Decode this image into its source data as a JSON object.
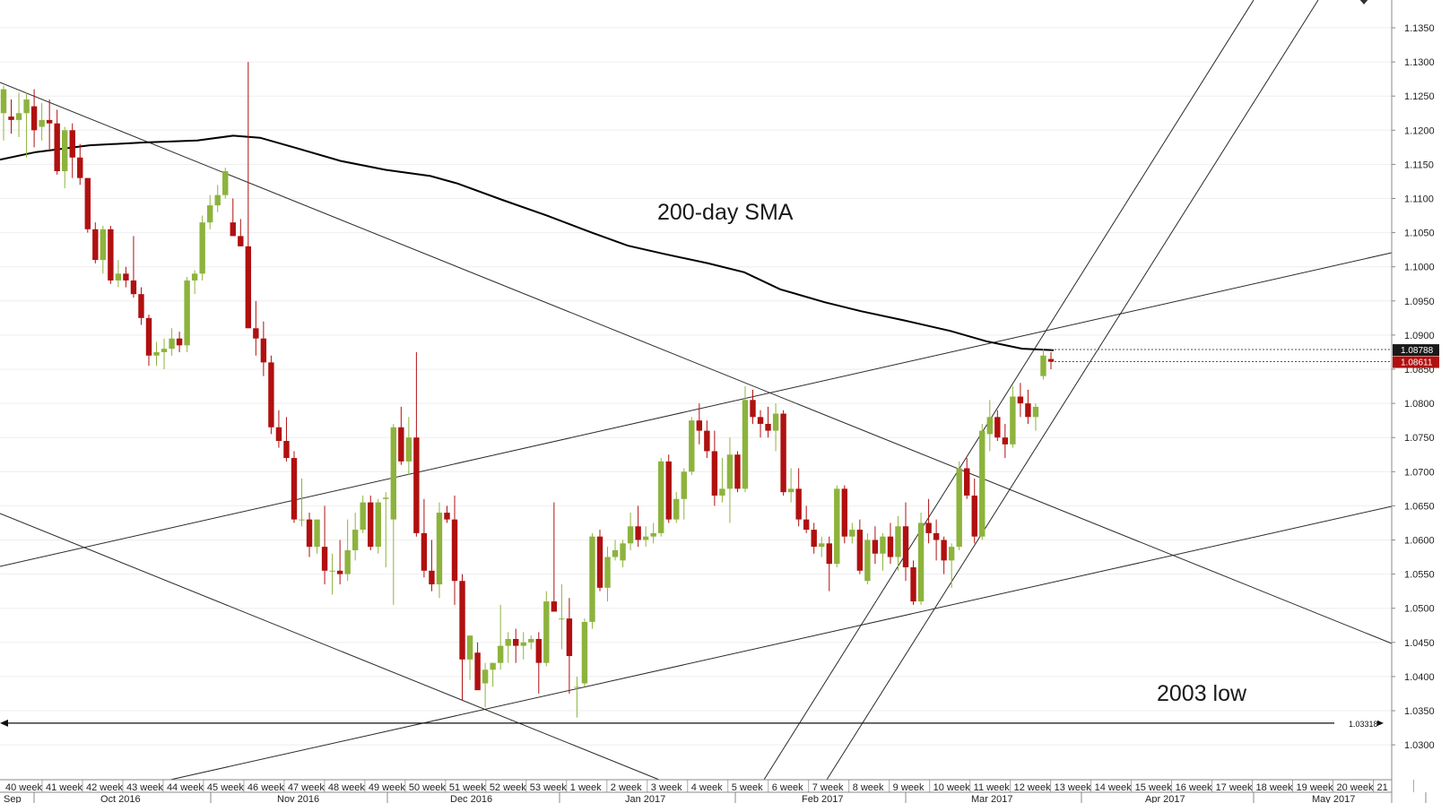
{
  "chart_data": {
    "type": "candlestick",
    "title": "",
    "xlabel": "",
    "ylabel": "",
    "ylim": [
      1.0252,
      1.1402
    ],
    "grid": true,
    "y_ticks": [
      "1.1350",
      "1.1300",
      "1.1250",
      "1.1200",
      "1.1150",
      "1.1100",
      "1.1050",
      "1.1000",
      "1.0950",
      "1.0900",
      "1.0850",
      "1.0800",
      "1.0750",
      "1.0700",
      "1.0650",
      "1.0600",
      "1.0550",
      "1.0500",
      "1.0450",
      "1.0400",
      "1.0350",
      "1.0300"
    ],
    "week_labels": [
      "40 week",
      "41 week",
      "42 week",
      "43 week",
      "44 week",
      "45 week",
      "46 week",
      "47 week",
      "48 week",
      "49 week",
      "50 week",
      "51 week",
      "52 week",
      "53 week",
      "1 week",
      "2 week",
      "3 week",
      "4 week",
      "5 week",
      "6 week",
      "7 week",
      "8 week",
      "9 week",
      "10 week",
      "11 week",
      "12 week",
      "13 week",
      "14 week",
      "15 week",
      "16 week",
      "17 week",
      "18 week",
      "19 week",
      "20 week",
      "21"
    ],
    "month_labels": [
      "Sep",
      "Oct 2016",
      "Nov 2016",
      "Dec 2016",
      "Jan 2017",
      "Feb 2017",
      "Mar 2017",
      "Apr 2017",
      "May 2017"
    ],
    "annotations": [
      "200-day SMA",
      "2003 low"
    ],
    "price_tags": [
      {
        "value": "1.08788",
        "color": "#1a1a1a"
      },
      {
        "value": "1.08611",
        "color": "#b01010"
      },
      {
        "value": "1.03318",
        "color": "#ffffff"
      }
    ],
    "horizontal_line": 1.03318,
    "candles": [
      [
        1.1225,
        1.1265,
        1.1185,
        1.126
      ],
      [
        1.122,
        1.1245,
        1.1195,
        1.1215
      ],
      [
        1.1215,
        1.1255,
        1.119,
        1.1225
      ],
      [
        1.1225,
        1.1255,
        1.116,
        1.1245
      ],
      [
        1.1235,
        1.126,
        1.1175,
        1.12
      ],
      [
        1.1205,
        1.124,
        1.1185,
        1.1215
      ],
      [
        1.1215,
        1.1245,
        1.117,
        1.121
      ],
      [
        1.121,
        1.123,
        1.1135,
        1.114
      ],
      [
        1.114,
        1.1205,
        1.1115,
        1.12
      ],
      [
        1.12,
        1.121,
        1.113,
        1.116
      ],
      [
        1.116,
        1.118,
        1.112,
        1.113
      ],
      [
        1.113,
        1.113,
        1.105,
        1.1055
      ],
      [
        1.1055,
        1.1065,
        1.1005,
        1.101
      ],
      [
        1.101,
        1.106,
        1.099,
        1.1055
      ],
      [
        1.1055,
        1.106,
        1.0975,
        1.098
      ],
      [
        1.098,
        1.101,
        1.097,
        1.099
      ],
      [
        1.099,
        1.1,
        1.097,
        1.098
      ],
      [
        1.098,
        1.1045,
        1.0955,
        1.096
      ],
      [
        1.096,
        1.097,
        1.0915,
        1.0925
      ],
      [
        1.0925,
        1.093,
        1.0855,
        1.087
      ],
      [
        1.087,
        1.089,
        1.0855,
        1.0875
      ],
      [
        1.0875,
        1.0895,
        1.085,
        1.088
      ],
      [
        1.088,
        1.091,
        1.087,
        1.0895
      ],
      [
        1.0895,
        1.0905,
        1.0875,
        1.0885
      ],
      [
        1.0885,
        1.0985,
        1.0875,
        1.098
      ],
      [
        1.098,
        1.0995,
        1.096,
        1.099
      ],
      [
        1.099,
        1.1075,
        1.098,
        1.1065
      ],
      [
        1.1065,
        1.1105,
        1.1055,
        1.109
      ],
      [
        1.109,
        1.112,
        1.108,
        1.1105
      ],
      [
        1.1105,
        1.1145,
        1.11,
        1.114
      ],
      [
        1.1065,
        1.11,
        1.1045,
        1.1045
      ],
      [
        1.1045,
        1.107,
        1.103,
        1.103
      ],
      [
        1.103,
        1.13,
        1.091,
        1.091
      ],
      [
        1.091,
        1.095,
        1.087,
        1.0895
      ],
      [
        1.0895,
        1.092,
        1.084,
        1.086
      ],
      [
        1.086,
        1.087,
        1.0755,
        1.0765
      ],
      [
        1.0765,
        1.079,
        1.0735,
        1.0745
      ],
      [
        1.0745,
        1.078,
        1.0715,
        1.072
      ],
      [
        1.072,
        1.073,
        1.0625,
        1.063
      ],
      [
        1.063,
        1.069,
        1.062,
        1.063
      ],
      [
        1.063,
        1.064,
        1.0575,
        1.059
      ],
      [
        1.059,
        1.063,
        1.058,
        1.063
      ],
      [
        1.059,
        1.065,
        1.0535,
        1.0555
      ],
      [
        1.0555,
        1.058,
        1.052,
        1.0555
      ],
      [
        1.0555,
        1.06,
        1.0535,
        1.055
      ],
      [
        1.055,
        1.063,
        1.054,
        1.0585
      ],
      [
        1.0585,
        1.064,
        1.057,
        1.0615
      ],
      [
        1.0615,
        1.0665,
        1.061,
        1.0655
      ],
      [
        1.0655,
        1.0665,
        1.0585,
        1.059
      ],
      [
        1.059,
        1.066,
        1.058,
        1.0655
      ],
      [
        1.066,
        1.067,
        1.056,
        1.0662
      ],
      [
        1.063,
        1.077,
        1.0505,
        1.0765
      ],
      [
        1.0765,
        1.0795,
        1.071,
        1.0715
      ],
      [
        1.0715,
        1.078,
        1.0695,
        1.075
      ],
      [
        1.075,
        1.0875,
        1.0605,
        1.061
      ],
      [
        1.061,
        1.066,
        1.0545,
        1.0555
      ],
      [
        1.0555,
        1.06,
        1.0525,
        1.0535
      ],
      [
        1.0535,
        1.0655,
        1.0515,
        1.064
      ],
      [
        1.064,
        1.065,
        1.0625,
        1.063
      ],
      [
        1.063,
        1.0665,
        1.0505,
        1.054
      ],
      [
        1.054,
        1.055,
        1.0365,
        1.0425
      ],
      [
        1.0425,
        1.046,
        1.0395,
        1.046
      ],
      [
        1.0435,
        1.045,
        1.0385,
        1.038
      ],
      [
        1.039,
        1.042,
        1.0355,
        1.041
      ],
      [
        1.041,
        1.042,
        1.0385,
        1.042
      ],
      [
        1.042,
        1.0505,
        1.041,
        1.0445
      ],
      [
        1.0445,
        1.0465,
        1.042,
        1.0455
      ],
      [
        1.0455,
        1.047,
        1.042,
        1.0445
      ],
      [
        1.0445,
        1.0465,
        1.0425,
        1.045
      ],
      [
        1.045,
        1.046,
        1.044,
        1.0455
      ],
      [
        1.0455,
        1.0465,
        1.0375,
        1.042
      ],
      [
        1.042,
        1.0525,
        1.0415,
        1.051
      ],
      [
        1.051,
        1.0655,
        1.0495,
        1.0495
      ],
      [
        1.0485,
        1.0535,
        1.044,
        1.0485
      ],
      [
        1.0485,
        1.0515,
        1.0375,
        1.043
      ],
      [
        1.0385,
        1.04,
        1.034,
        1.0385
      ],
      [
        1.039,
        1.0485,
        1.0385,
        1.048
      ],
      [
        1.048,
        1.061,
        1.047,
        1.0605
      ],
      [
        1.0605,
        1.0615,
        1.0525,
        1.053
      ],
      [
        1.053,
        1.059,
        1.051,
        1.0575
      ],
      [
        1.0575,
        1.06,
        1.057,
        1.0585
      ],
      [
        1.057,
        1.06,
        1.056,
        1.0595
      ],
      [
        1.0595,
        1.064,
        1.0585,
        1.062
      ],
      [
        1.062,
        1.065,
        1.059,
        1.06
      ],
      [
        1.06,
        1.062,
        1.059,
        1.0605
      ],
      [
        1.0605,
        1.0625,
        1.0595,
        1.061
      ],
      [
        1.061,
        1.072,
        1.0605,
        1.0715
      ],
      [
        1.0715,
        1.0725,
        1.0625,
        1.063
      ],
      [
        1.063,
        1.067,
        1.0625,
        1.066
      ],
      [
        1.066,
        1.0705,
        1.063,
        1.07
      ],
      [
        1.07,
        1.078,
        1.0695,
        1.0775
      ],
      [
        1.0775,
        1.08,
        1.074,
        1.076
      ],
      [
        1.076,
        1.0775,
        1.072,
        1.073
      ],
      [
        1.073,
        1.076,
        1.065,
        1.0665
      ],
      [
        1.0665,
        1.072,
        1.0655,
        1.0675
      ],
      [
        1.0675,
        1.075,
        1.0625,
        1.0725
      ],
      [
        1.0725,
        1.073,
        1.067,
        1.0675
      ],
      [
        1.0675,
        1.0825,
        1.067,
        1.0805
      ],
      [
        1.0805,
        1.082,
        1.077,
        1.078
      ],
      [
        1.078,
        1.079,
        1.075,
        1.077
      ],
      [
        1.077,
        1.0795,
        1.075,
        1.076
      ],
      [
        1.076,
        1.08,
        1.073,
        1.0785
      ],
      [
        1.0785,
        1.079,
        1.0665,
        1.067
      ],
      [
        1.067,
        1.0705,
        1.0655,
        1.0675
      ],
      [
        1.0675,
        1.0705,
        1.062,
        1.063
      ],
      [
        1.063,
        1.065,
        1.061,
        1.0615
      ],
      [
        1.0615,
        1.0625,
        1.058,
        1.059
      ],
      [
        1.059,
        1.0605,
        1.0575,
        1.0595
      ],
      [
        1.0595,
        1.0605,
        1.0525,
        1.0565
      ],
      [
        1.0565,
        1.068,
        1.056,
        1.0675
      ],
      [
        1.0675,
        1.068,
        1.0595,
        1.0605
      ],
      [
        1.0605,
        1.0625,
        1.0595,
        1.0615
      ],
      [
        1.0615,
        1.063,
        1.055,
        1.0555
      ],
      [
        1.054,
        1.061,
        1.0535,
        1.06
      ],
      [
        1.06,
        1.062,
        1.0565,
        1.058
      ],
      [
        1.058,
        1.061,
        1.0555,
        1.0605
      ],
      [
        1.0605,
        1.0625,
        1.0565,
        1.0575
      ],
      [
        1.0575,
        1.0635,
        1.0555,
        1.062
      ],
      [
        1.062,
        1.0655,
        1.054,
        1.056
      ],
      [
        1.056,
        1.057,
        1.0505,
        1.051
      ],
      [
        1.051,
        1.064,
        1.0505,
        1.0625
      ],
      [
        1.0625,
        1.066,
        1.0595,
        1.061
      ],
      [
        1.061,
        1.063,
        1.057,
        1.06
      ],
      [
        1.06,
        1.0605,
        1.055,
        1.057
      ],
      [
        1.057,
        1.0595,
        1.053,
        1.059
      ],
      [
        1.059,
        1.0715,
        1.0585,
        1.0705
      ],
      [
        1.0705,
        1.072,
        1.066,
        1.0665
      ],
      [
        1.0665,
        1.069,
        1.0595,
        1.0605
      ],
      [
        1.0605,
        1.077,
        1.06,
        1.076
      ],
      [
        1.0755,
        1.0805,
        1.073,
        1.078
      ],
      [
        1.078,
        1.079,
        1.0745,
        1.075
      ],
      [
        1.075,
        1.077,
        1.072,
        1.074
      ],
      [
        1.074,
        1.0825,
        1.0735,
        1.081
      ],
      [
        1.081,
        1.083,
        1.078,
        1.08
      ],
      [
        1.08,
        1.082,
        1.077,
        1.078
      ],
      [
        1.078,
        1.08,
        1.076,
        1.0795
      ],
      [
        1.084,
        1.088,
        1.0835,
        1.087
      ],
      [
        1.0865,
        1.0875,
        1.085,
        1.0861
      ]
    ],
    "sma_200": [
      [
        0,
        1.1157
      ],
      [
        40,
        1.1168
      ],
      [
        100,
        1.1178
      ],
      [
        160,
        1.1182
      ],
      [
        220,
        1.1185
      ],
      [
        260,
        1.1192
      ],
      [
        290,
        1.1189
      ],
      [
        330,
        1.1174
      ],
      [
        380,
        1.1155
      ],
      [
        430,
        1.1142
      ],
      [
        480,
        1.1133
      ],
      [
        510,
        1.1122
      ],
      [
        560,
        1.1098
      ],
      [
        610,
        1.1075
      ],
      [
        660,
        1.105
      ],
      [
        700,
        1.1031
      ],
      [
        740,
        1.1019
      ],
      [
        790,
        1.1005
      ],
      [
        830,
        1.0992
      ],
      [
        870,
        1.0967
      ],
      [
        920,
        1.0948
      ],
      [
        960,
        1.0935
      ],
      [
        1010,
        1.0921
      ],
      [
        1060,
        1.0906
      ],
      [
        1100,
        1.0891
      ],
      [
        1140,
        1.088
      ],
      [
        1175,
        1.0878
      ]
    ]
  }
}
